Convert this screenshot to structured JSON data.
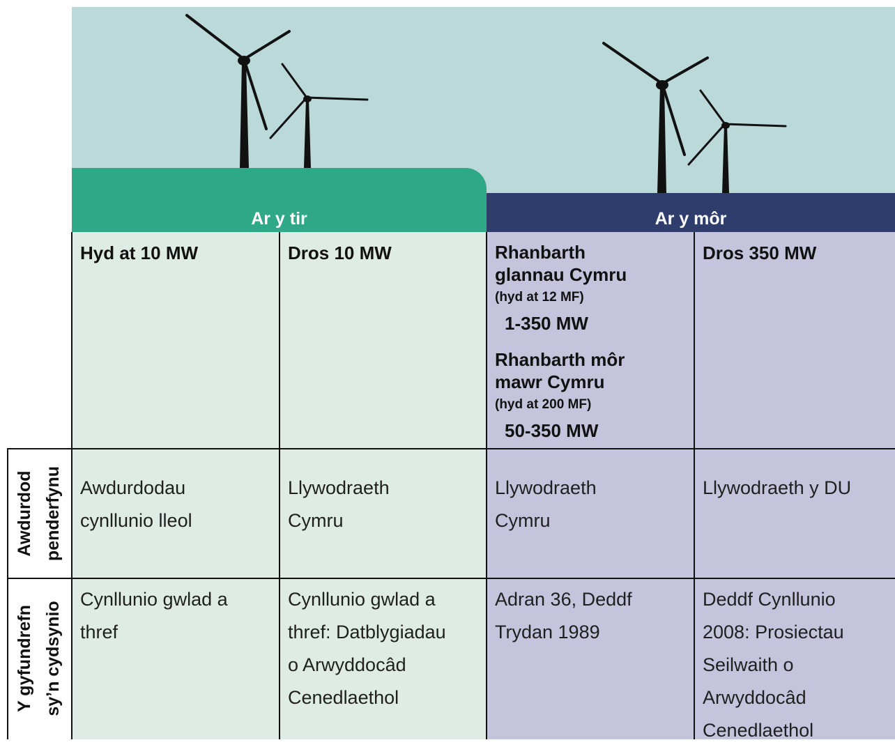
{
  "header_groups": [
    "Ar y tir",
    "Ar y môr"
  ],
  "columns": [
    {
      "title": "Hyd at 10 MW"
    },
    {
      "title": "Dros 10 MW"
    },
    {
      "regions": [
        {
          "name": [
            "Rhanbarth",
            "glannau Cymru"
          ],
          "limit": "(hyd at 12 MF)",
          "range": "1-350 MW"
        },
        {
          "name": [
            "Rhanbarth môr",
            "mawr Cymru"
          ],
          "limit": "(hyd at 200 MF)",
          "range": "50-350 MW"
        }
      ]
    },
    {
      "title": "Dros 350 MW"
    }
  ],
  "rows": [
    {
      "label": [
        "Awdurdod",
        "penderfynu"
      ],
      "cells": [
        [
          "Awdurdodau",
          "cynllunio lleol"
        ],
        [
          "Llywodraeth",
          "Cymru"
        ],
        [
          "Llywodraeth",
          "Cymru"
        ],
        [
          "Llywodraeth y DU"
        ]
      ]
    },
    {
      "label": [
        "Y gyfundrefn",
        "sy’n cydsynio"
      ],
      "cells": [
        [
          "Cynllunio gwlad a",
          "thref"
        ],
        [
          "Cynllunio gwlad a",
          "thref: Datblygiadau",
          "o Arwyddocâd",
          "Cenedlaethol"
        ],
        [
          "Adran 36, Deddf",
          "Trydan 1989"
        ],
        [
          "Deddf Cynllunio",
          "2008:  Prosiectau",
          "Seilwaith o",
          "Arwyddocâd",
          "Cenedlaethol"
        ]
      ]
    }
  ]
}
